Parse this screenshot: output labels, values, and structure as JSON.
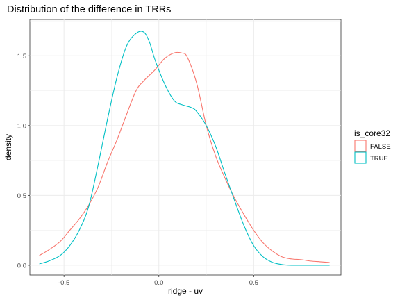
{
  "chart_data": {
    "type": "line",
    "title": "Distribution of the difference in TRRs",
    "xlabel": "ridge - uv",
    "ylabel": "density",
    "xlim": [
      -0.68,
      0.96
    ],
    "ylim": [
      -0.07,
      1.76
    ],
    "x_ticks": [
      -0.5,
      0.0,
      0.5
    ],
    "x_tick_labels": [
      "-0.5",
      "0.0",
      "0.5"
    ],
    "y_ticks": [
      0.0,
      0.5,
      1.0,
      1.5
    ],
    "y_tick_labels": [
      "0.0",
      "0.5",
      "1.0",
      "1.5"
    ],
    "grid": true,
    "legend": {
      "title": "is_core32",
      "position": "right"
    },
    "series": [
      {
        "name": "FALSE",
        "color": "#F8766D",
        "x": [
          -0.63,
          -0.58,
          -0.52,
          -0.47,
          -0.42,
          -0.37,
          -0.32,
          -0.27,
          -0.22,
          -0.17,
          -0.12,
          -0.08,
          -0.02,
          0.03,
          0.08,
          0.12,
          0.15,
          0.2,
          0.25,
          0.3,
          0.35,
          0.4,
          0.45,
          0.5,
          0.55,
          0.6,
          0.65,
          0.7,
          0.75,
          0.8,
          0.85,
          0.9
        ],
        "y": [
          0.07,
          0.11,
          0.17,
          0.25,
          0.33,
          0.43,
          0.56,
          0.74,
          0.9,
          1.08,
          1.25,
          1.32,
          1.4,
          1.48,
          1.52,
          1.52,
          1.49,
          1.3,
          1.0,
          0.78,
          0.62,
          0.48,
          0.36,
          0.25,
          0.16,
          0.1,
          0.06,
          0.045,
          0.04,
          0.03,
          0.025,
          0.02
        ]
      },
      {
        "name": "TRUE",
        "color": "#00BFC4",
        "x": [
          -0.63,
          -0.58,
          -0.52,
          -0.47,
          -0.42,
          -0.37,
          -0.32,
          -0.27,
          -0.22,
          -0.17,
          -0.12,
          -0.08,
          -0.05,
          -0.02,
          0.03,
          0.08,
          0.12,
          0.17,
          0.2,
          0.25,
          0.3,
          0.35,
          0.4,
          0.45,
          0.5,
          0.55,
          0.6,
          0.65,
          0.7,
          0.75,
          0.8,
          0.85,
          0.9
        ],
        "y": [
          0.01,
          0.03,
          0.07,
          0.14,
          0.25,
          0.42,
          0.72,
          1.05,
          1.35,
          1.57,
          1.66,
          1.67,
          1.6,
          1.47,
          1.3,
          1.18,
          1.15,
          1.13,
          1.1,
          1.0,
          0.85,
          0.65,
          0.46,
          0.28,
          0.14,
          0.06,
          0.02,
          0.005,
          0.0,
          0.0,
          0.0,
          0.0,
          0.0
        ]
      }
    ]
  }
}
